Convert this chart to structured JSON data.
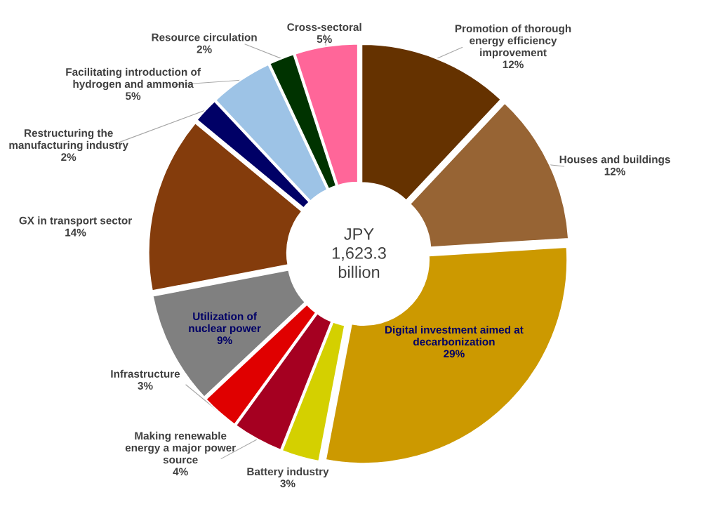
{
  "chart_data": {
    "type": "donut",
    "categories": [
      "Promotion of thorough\nenergy efficiency\nimprovement",
      "Houses and buildings",
      "Digital investment aimed at\ndecarbonization",
      "Battery industry",
      "Making renewable\nenergy a major power\nsource",
      "Infrastructure",
      "Utilization of\nnuclear power",
      "GX in transport sector",
      "Restructuring the\nmanufacturing industry",
      "Facilitating introduction of\nhydrogen and ammonia",
      "Resource circulation",
      "Cross-sectoral"
    ],
    "values": [
      12,
      12,
      29,
      3,
      4,
      3,
      9,
      14,
      2,
      5,
      2,
      5
    ],
    "value_labels": [
      "12%",
      "12%",
      "29%",
      "3%",
      "4%",
      "3%",
      "9%",
      "14%",
      "2%",
      "5%",
      "2%",
      "5%"
    ],
    "colors": [
      "#653200",
      "#976434",
      "#cc9900",
      "#d4d000",
      "#a50021",
      "#e00000",
      "#808080",
      "#843c0c",
      "#000066",
      "#9dc3e6",
      "#003300",
      "#ff6699"
    ],
    "annotations": [
      "JPY\n1,623.3\nbillion"
    ]
  }
}
